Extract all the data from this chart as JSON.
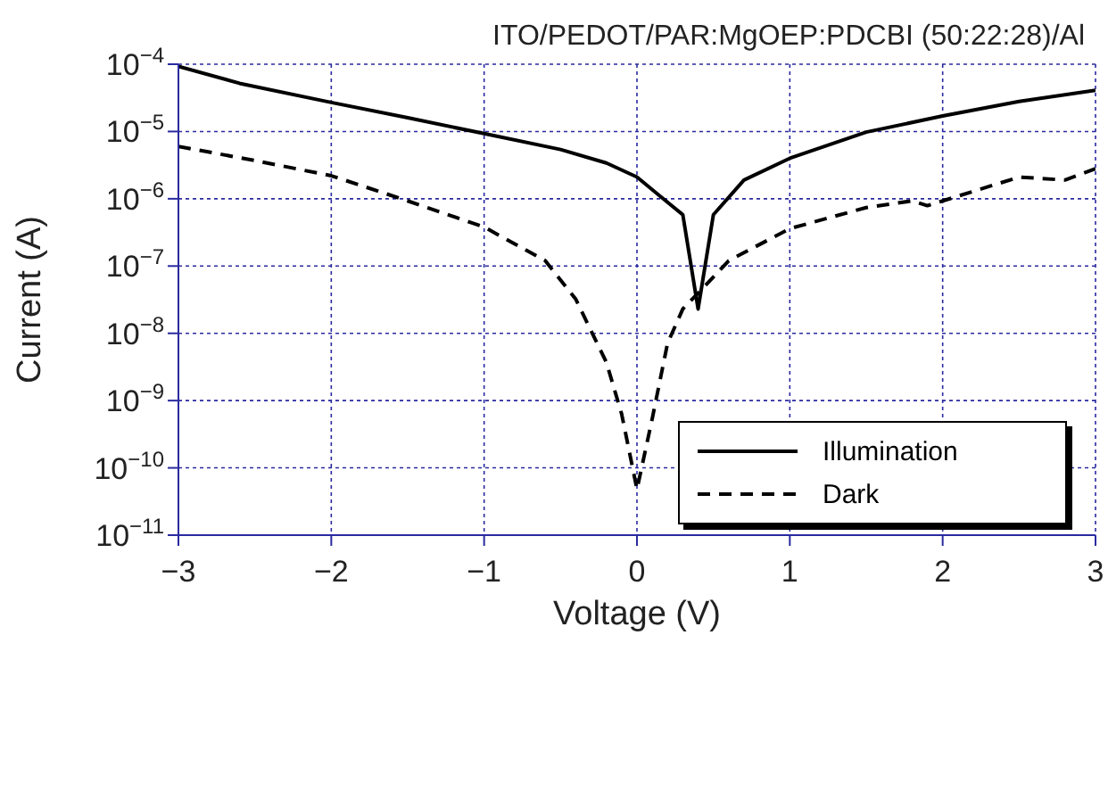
{
  "chart_data": {
    "type": "line",
    "title": "ITO/PEDOT/PAR:MgOEP:PDCBI (50:22:28)/Al",
    "xlabel": "Voltage (V)",
    "ylabel": "Current (A)",
    "log": "y",
    "grid": true,
    "legend": "right",
    "marker": "none",
    "xlim": [
      -3,
      3
    ],
    "xticks": [
      {
        "value": -3,
        "label": "−3"
      },
      {
        "value": -2,
        "label": "−2"
      },
      {
        "value": -1,
        "label": "−1"
      },
      0,
      1,
      2,
      3
    ],
    "ylim": [
      1e-11,
      0.0001
    ],
    "yticks": [
      {
        "value": 1e-11,
        "label": "10$^{−11}$"
      },
      {
        "value": 1e-10,
        "label": "10$^{−10}$"
      },
      {
        "value": 1e-09,
        "label": "10$^{−9}$"
      },
      {
        "value": 1e-08,
        "label": "10$^{−8}$"
      },
      {
        "value": 1e-07,
        "label": "10$^{−7}$"
      },
      {
        "value": 1e-06,
        "label": "10$^{−6}$"
      },
      {
        "value": 1e-05,
        "label": "10$^{−5}$"
      },
      {
        "value": 0.0001,
        "label": "10$^{−4}$"
      }
    ],
    "series": [
      {
        "name": "Illumination",
        "color": "#000000",
        "line_style": "solid",
        "x": [
          -3,
          -2.6,
          -2,
          -1.5,
          -1,
          -0.5,
          -0.2,
          0,
          0.15,
          0.3,
          0.4,
          0.5,
          0.7,
          1,
          1.5,
          2,
          2.5,
          3
        ],
        "values": [
          9.3e-05,
          5.2e-05,
          2.7e-05,
          1.6e-05,
          9.3e-06,
          5.4e-06,
          3.4e-06,
          2.1e-06,
          1.1e-06,
          5.8e-07,
          2.3e-08,
          5.8e-07,
          1.9e-06,
          4e-06,
          9.8e-06,
          1.7e-05,
          2.8e-05,
          4.1e-05
        ]
      },
      {
        "name": "Dark",
        "color": "#000000",
        "line_style": "dashed",
        "x": [
          -3,
          -2.5,
          -2,
          -1.5,
          -1,
          -0.6,
          -0.4,
          -0.2,
          -0.1,
          0,
          0.1,
          0.2,
          0.3,
          0.45,
          0.6,
          1,
          1.5,
          1.8,
          1.9,
          2,
          2.5,
          2.8,
          3
        ],
        "values": [
          6e-06,
          3.7e-06,
          2.2e-06,
          9.3e-07,
          3.8e-07,
          1.2e-07,
          3.2e-08,
          3.7e-09,
          6.3e-10,
          4.8e-11,
          5.4e-10,
          7.1e-09,
          2.3e-08,
          5.2e-08,
          1.2e-07,
          3.6e-07,
          7.4e-07,
          9.3e-07,
          7.9e-07,
          9.3e-07,
          2.1e-06,
          1.9e-06,
          2.8e-06
        ]
      }
    ]
  }
}
